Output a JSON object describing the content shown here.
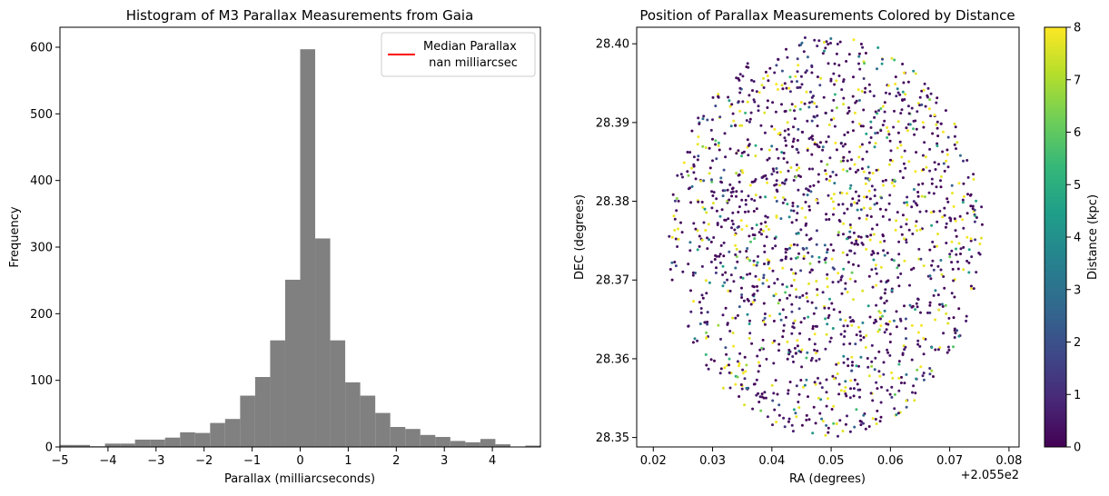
{
  "chart_data": [
    {
      "type": "bar",
      "title": "Histogram of M3 Parallax Measurements from Gaia",
      "xlabel": "Parallax (milliarcseconds)",
      "ylabel": "Frequency",
      "xlim": [
        -5,
        5
      ],
      "ylim": [
        0,
        630
      ],
      "xticks": [
        "−5",
        "−4",
        "−3",
        "−2",
        "−1",
        "0",
        "1",
        "2",
        "3",
        "4"
      ],
      "yticks": [
        "0",
        "100",
        "200",
        "300",
        "400",
        "500",
        "600"
      ],
      "bar_color": "#808080",
      "bin_width": 0.3125,
      "bin_starts": [
        -5.0,
        -4.6875,
        -4.375,
        -4.0625,
        -3.75,
        -3.4375,
        -3.125,
        -2.8125,
        -2.5,
        -2.1875,
        -1.875,
        -1.5625,
        -1.25,
        -0.9375,
        -0.625,
        -0.3125,
        0.0,
        0.3125,
        0.625,
        0.9375,
        1.25,
        1.5625,
        1.875,
        2.1875,
        2.5,
        2.8125,
        3.125,
        3.4375,
        3.75,
        4.0625,
        4.375,
        4.6875
      ],
      "values": [
        3,
        3,
        1,
        5,
        5,
        11,
        11,
        14,
        22,
        21,
        36,
        42,
        77,
        105,
        160,
        251,
        597,
        313,
        160,
        97,
        77,
        51,
        30,
        27,
        18,
        15,
        9,
        7,
        12,
        4,
        0,
        2
      ],
      "legend": {
        "placement": "top-right",
        "line_color": "#ff0000",
        "label_line1": "Median Parallax",
        "label_line2": " nan milliarcsec"
      }
    },
    {
      "type": "scatter",
      "title": "Position of Parallax Measurements Colored by Distance",
      "xlabel": "RA (degrees)",
      "ylabel": "DEC (degrees)",
      "xlim": [
        205.5172,
        205.5817
      ],
      "ylim": [
        28.3488,
        28.4021
      ],
      "xticks": [
        "0.02",
        "0.03",
        "0.04",
        "0.05",
        "0.06",
        "0.07",
        "0.08"
      ],
      "x_offset_label": "+2.055e2",
      "yticks": [
        "28.35",
        "28.36",
        "28.37",
        "28.38",
        "28.39",
        "28.40"
      ],
      "point_region": {
        "shape": "circle",
        "center_ra": 205.549,
        "center_dec": 28.3755,
        "radius_deg": 0.0255
      },
      "approx_point_count": 1700,
      "colorbar": {
        "label": "Distance (kpc)",
        "colormap": "viridis",
        "range": [
          0,
          8
        ],
        "ticks": [
          "0",
          "1",
          "2",
          "3",
          "4",
          "5",
          "6",
          "7",
          "8"
        ],
        "colors": [
          "#440154",
          "#482878",
          "#3e4989",
          "#31688e",
          "#26828e",
          "#1f9e89",
          "#35b779",
          "#6ece58",
          "#b5de2b",
          "#fde725"
        ]
      }
    }
  ]
}
